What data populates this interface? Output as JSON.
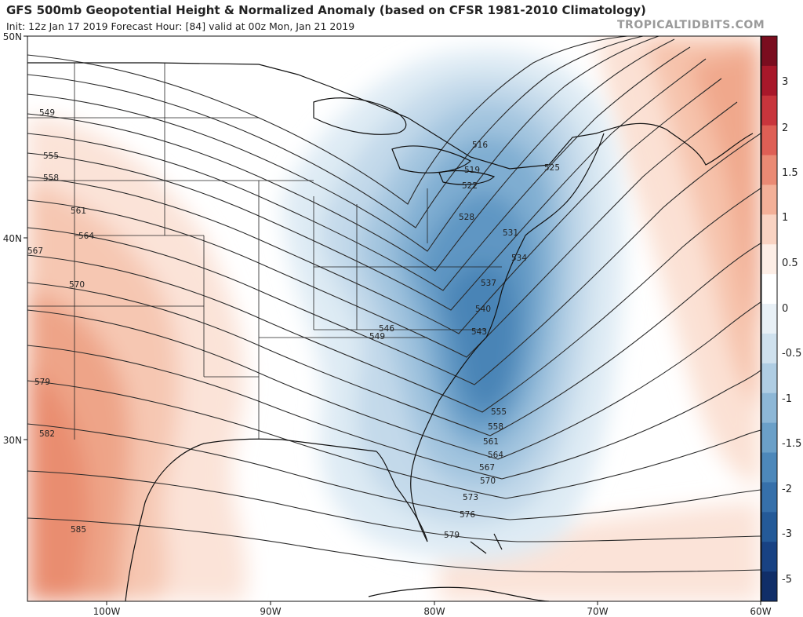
{
  "header": {
    "title": "GFS 500mb Geopotential Height & Normalized Anomaly (based on CFSR 1981-2010 Climatology)",
    "subtitle": "Init: 12z Jan 17 2019   Forecast Hour: [84]   valid at 00z Mon, Jan 21 2019",
    "brand": "TROPICALTIDBITS.COM"
  },
  "axes": {
    "lat_labels": [
      "50N",
      "40N",
      "30N"
    ],
    "lon_labels": [
      "100W",
      "90W",
      "80W",
      "70W",
      "60W"
    ]
  },
  "colorbar": {
    "labels": [
      "3",
      "2",
      "1.5",
      "1",
      "0.5",
      "0",
      "-0.5",
      "-1",
      "-1.5",
      "-2",
      "-3",
      "-5"
    ],
    "colors": [
      "#7a0d1f",
      "#a8182a",
      "#c8353c",
      "#de5f55",
      "#ea8a74",
      "#f3b098",
      "#f9d3c2",
      "#fdeee6",
      "#ffffff",
      "#e8f0f6",
      "#cfe1ee",
      "#afcde3",
      "#8db7d6",
      "#6ba0c8",
      "#4d88ba",
      "#3670aa",
      "#245a98",
      "#184283",
      "#102e68"
    ]
  },
  "contours": {
    "left_labels": [
      "549",
      "555",
      "558",
      "561",
      "564",
      "567",
      "570",
      "579",
      "582",
      "585"
    ],
    "trough_labels": [
      "516",
      "519",
      "522",
      "525",
      "528",
      "531",
      "534",
      "537",
      "540",
      "543",
      "546",
      "549"
    ],
    "coast_labels": [
      "555",
      "558",
      "561",
      "564",
      "567",
      "570",
      "573",
      "576",
      "579"
    ]
  }
}
